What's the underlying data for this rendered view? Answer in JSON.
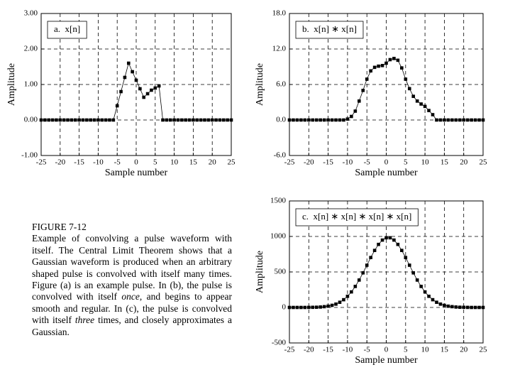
{
  "chart_data": [
    {
      "type": "line",
      "title": "a.  x[n]",
      "xlabel": "Sample number",
      "ylabel": "Amplitude",
      "x": [
        -25,
        -24,
        -23,
        -22,
        -21,
        -20,
        -19,
        -18,
        -17,
        -16,
        -15,
        -14,
        -13,
        -12,
        -11,
        -10,
        -9,
        -8,
        -7,
        -6,
        -5,
        -4,
        -3,
        -2,
        -1,
        0,
        1,
        2,
        3,
        4,
        5,
        6,
        7,
        8,
        9,
        10,
        11,
        12,
        13,
        14,
        15,
        16,
        17,
        18,
        19,
        20,
        21,
        22,
        23,
        24,
        25
      ],
      "series": [
        {
          "color": "#000000",
          "values": [
            0,
            0,
            0,
            0,
            0,
            0,
            0,
            0,
            0,
            0,
            0,
            0,
            0,
            0,
            0,
            0,
            0,
            0,
            0,
            0,
            0.4,
            0.8,
            1.2,
            1.6,
            1.36,
            1.12,
            0.88,
            0.64,
            0.74,
            0.84,
            0.9,
            0.96,
            0,
            0,
            0,
            0,
            0,
            0,
            0,
            0,
            0,
            0,
            0,
            0,
            0,
            0,
            0,
            0,
            0,
            0,
            0
          ]
        }
      ],
      "xlim": [
        -25,
        25
      ],
      "xticks": [
        -25,
        -20,
        -15,
        -10,
        -5,
        0,
        5,
        10,
        15,
        20,
        25
      ],
      "ylim": [
        -1,
        3
      ],
      "yticks": [
        {
          "value": -1,
          "label": "-1.00"
        },
        {
          "value": 0,
          "label": "0.00"
        },
        {
          "value": 1,
          "label": "1.00"
        },
        {
          "value": 2,
          "label": "2.00"
        },
        {
          "value": 3,
          "label": "3.00"
        }
      ],
      "grid": true
    },
    {
      "type": "line",
      "title": "b.  x[n] ∗ x[n]",
      "xlabel": "Sample number",
      "ylabel": "Amplitude",
      "x": [
        -25,
        -24,
        -23,
        -22,
        -21,
        -20,
        -19,
        -18,
        -17,
        -16,
        -15,
        -14,
        -13,
        -12,
        -11,
        -10,
        -9,
        -8,
        -7,
        -6,
        -5,
        -4,
        -3,
        -2,
        -1,
        0,
        1,
        2,
        3,
        4,
        5,
        6,
        7,
        8,
        9,
        10,
        11,
        12,
        13,
        14,
        15,
        16,
        17,
        18,
        19,
        20,
        21,
        22,
        23,
        24,
        25
      ],
      "series": [
        {
          "color": "#000000",
          "values": [
            0,
            0,
            0,
            0,
            0,
            0,
            0,
            0,
            0,
            0,
            0,
            0,
            0,
            0,
            0,
            0.16,
            0.6,
            1.5,
            3.2,
            5.0,
            6.9,
            8.3,
            8.9,
            9.1,
            9.2,
            9.6,
            10.2,
            10.4,
            10.1,
            8.8,
            6.9,
            5.3,
            4.0,
            3.2,
            2.7,
            2.3,
            1.6,
            0.9,
            0,
            0,
            0,
            0,
            0,
            0,
            0,
            0,
            0,
            0,
            0,
            0,
            0
          ]
        }
      ],
      "xlim": [
        -25,
        25
      ],
      "xticks": [
        -25,
        -20,
        -15,
        -10,
        -5,
        0,
        5,
        10,
        15,
        20,
        25
      ],
      "ylim": [
        -6,
        18
      ],
      "yticks": [
        {
          "value": -6,
          "label": "-6.0"
        },
        {
          "value": 0,
          "label": "0.0"
        },
        {
          "value": 6,
          "label": "6.0"
        },
        {
          "value": 12,
          "label": "12.0"
        },
        {
          "value": 18,
          "label": "18.0"
        }
      ],
      "grid": true
    },
    {
      "type": "line",
      "title": "c.  x[n] ∗ x[n] ∗ x[n] ∗ x[n]",
      "xlabel": "Sample number",
      "ylabel": "Amplitude",
      "x": [
        -25,
        -24,
        -23,
        -22,
        -21,
        -20,
        -19,
        -18,
        -17,
        -16,
        -15,
        -14,
        -13,
        -12,
        -11,
        -10,
        -9,
        -8,
        -7,
        -6,
        -5,
        -4,
        -3,
        -2,
        -1,
        0,
        1,
        2,
        3,
        4,
        5,
        6,
        7,
        8,
        9,
        10,
        11,
        12,
        13,
        14,
        15,
        16,
        17,
        18,
        19,
        20,
        21,
        22,
        23,
        24,
        25
      ],
      "series": [
        {
          "color": "#000000",
          "values": [
            0,
            0,
            0,
            0,
            0,
            1,
            2,
            3,
            6,
            11,
            18,
            30,
            47,
            73,
            109,
            157,
            219,
            296,
            386,
            487,
            595,
            703,
            803,
            888,
            949,
            981,
            981,
            949,
            888,
            803,
            703,
            595,
            487,
            386,
            296,
            219,
            157,
            109,
            73,
            47,
            30,
            18,
            11,
            6,
            3,
            2,
            1,
            0,
            0,
            0,
            0
          ]
        }
      ],
      "xlim": [
        -25,
        25
      ],
      "xticks": [
        -25,
        -20,
        -15,
        -10,
        -5,
        0,
        5,
        10,
        15,
        20,
        25
      ],
      "ylim": [
        -500,
        1500
      ],
      "yticks": [
        -500,
        0,
        500,
        1000,
        1500
      ],
      "grid": true
    }
  ],
  "caption": {
    "label": "FIGURE 7-12",
    "parts": [
      "Example of convolving a pulse waveform with itself. The Central Limit Theorem shows that a Gaussian waveform is produced when an arbitrary shaped pulse is convolved with itself many times.  Figure (a) is an example pulse.  In (b), the pulse is convolved with itself ",
      "once",
      ", and begins to appear smooth and regular.  In (c), the pulse is convolved with itself ",
      "three",
      " times, and closely approximates a Gaussian."
    ]
  }
}
